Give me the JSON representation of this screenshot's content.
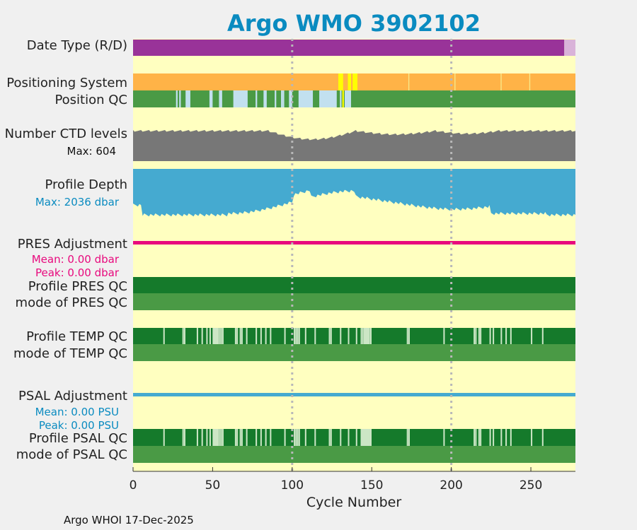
{
  "chart_data": {
    "type": "bar",
    "title": "Argo WMO 3902102",
    "xlabel": "Cycle Number",
    "xlim": [
      0,
      278
    ],
    "xticks": [
      0,
      50,
      100,
      150,
      200,
      250
    ],
    "gridlines_x": [
      100,
      200
    ],
    "footer": "Argo WHOI 17-Dec-2025",
    "colors": {
      "background": "#ffffc0",
      "delayed": "#993399",
      "realtime": "#d9b3d9",
      "gps": "#ffb347",
      "argos_alt": "#ffff00",
      "qc_good": "#4a9a45",
      "qc_good_dark": "#157a2b",
      "qc_probably_good": "#c2e0ef",
      "qc_light": "#cce6c5",
      "ctd": "#777777",
      "depth": "#45aad0",
      "pres_adj": "#e8097d",
      "psal_adj": "#45aad0",
      "title": "#0a8bc0"
    },
    "rows": {
      "date_type": {
        "label": "Date Type (R/D)",
        "delayed_until": 271,
        "total": 278
      },
      "positioning": {
        "label": "Positioning System",
        "alt_ranges": [
          [
            129,
            132
          ],
          [
            135,
            137
          ],
          [
            138,
            141
          ]
        ],
        "separators": [
          173,
          202,
          231,
          249
        ]
      },
      "position_qc": {
        "label": "Position QC",
        "light_ranges": [
          [
            27,
            28
          ],
          [
            29,
            30
          ],
          [
            33,
            36
          ],
          [
            48,
            50
          ],
          [
            54,
            56
          ],
          [
            63,
            72
          ],
          [
            77,
            78
          ],
          [
            82,
            84
          ],
          [
            89,
            90
          ],
          [
            93,
            94
          ],
          [
            94,
            95
          ],
          [
            98,
            100
          ],
          [
            104,
            113
          ],
          [
            117,
            128
          ],
          [
            130,
            131
          ],
          [
            133,
            137
          ]
        ]
      },
      "ctd_levels": {
        "label": "Number CTD levels",
        "max_text": "Max: 604",
        "max": 604
      },
      "profile_depth": {
        "label": "Profile Depth",
        "max_text": "Max: 2036 dbar",
        "max": 2036
      },
      "pres_adj": {
        "label": "PRES Adjustment",
        "mean": "Mean: 0.00 dbar",
        "peak": "Peak: 0.00 dbar"
      },
      "pres_qc": {
        "label": "Profile PRES QC",
        "mode_label": "mode of PRES QC"
      },
      "temp_qc": {
        "label": "Profile TEMP QC",
        "mode_label": "mode of TEMP QC",
        "flags": [
          19,
          31,
          32,
          40,
          43,
          46,
          48,
          50,
          51,
          52,
          53,
          54,
          55,
          56,
          64,
          65,
          67,
          68,
          71,
          77,
          80,
          83,
          86,
          95,
          101,
          102,
          103,
          104,
          108,
          114,
          123,
          124,
          130,
          135,
          140,
          143,
          144,
          145,
          146,
          147,
          148,
          149,
          172,
          173,
          195,
          214,
          215,
          217,
          218,
          224,
          226,
          231,
          234,
          237,
          250,
          257
        ]
      },
      "psal_adj": {
        "label": "PSAL Adjustment",
        "mean": "Mean: 0.00 PSU",
        "peak": "Peak: 0.00 PSU"
      },
      "psal_qc": {
        "label": "Profile PSAL QC",
        "mode_label": "mode of PSAL QC",
        "flags": [
          19,
          31,
          32,
          40,
          43,
          46,
          48,
          50,
          51,
          52,
          53,
          54,
          55,
          56,
          64,
          65,
          67,
          68,
          71,
          77,
          80,
          83,
          86,
          95,
          101,
          102,
          103,
          104,
          108,
          114,
          123,
          124,
          130,
          135,
          140,
          143,
          144,
          145,
          146,
          147,
          148,
          149,
          172,
          173,
          195,
          214,
          215,
          217,
          218,
          224,
          226,
          231,
          234,
          237,
          250,
          257
        ]
      }
    }
  }
}
